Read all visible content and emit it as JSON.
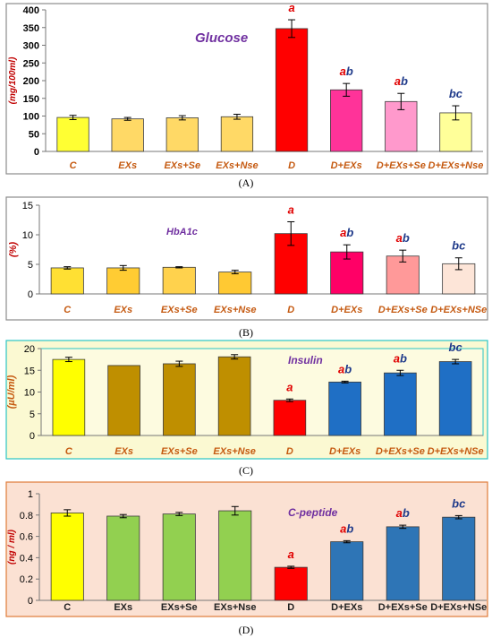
{
  "colors": {
    "frame": "#8c8c8c",
    "axis": "#7f7f7f",
    "letter_red": "#e00000",
    "letter_dark": "#1f3a8a",
    "panel_a_bg": "#ffffff",
    "panel_b_bg": "#ffffff",
    "panel_c_bg": "#fbf9d2",
    "panel_c_border": "#2cc4c4",
    "panel_d_bg": "#fbe1d3",
    "panel_d_border": "#e07b39"
  },
  "chart_data": [
    {
      "type": "bar",
      "panel_label": "(A)",
      "title": "Glucose",
      "ylabel": "(mg/100ml)",
      "ylim": [
        0,
        400
      ],
      "yticks": [
        "0",
        "50",
        "100",
        "150",
        "200",
        "250",
        "300",
        "350",
        "400"
      ],
      "grid": false,
      "categories": [
        "C",
        "EXs",
        "EXs+Se",
        "EXs+Nse",
        "D",
        "D+EXs",
        "D+EXs+Se",
        "D+EXs+Nse"
      ],
      "values": [
        96,
        92,
        95,
        98,
        347,
        174,
        141,
        109
      ],
      "errors": [
        6,
        4,
        6,
        7,
        25,
        18,
        23,
        20
      ],
      "bar_colors": [
        "#ffff33",
        "#ffd966",
        "#ffd966",
        "#ffd966",
        "#ff0000",
        "#ff3399",
        "#ff99cc",
        "#ffff99"
      ],
      "annotations": [
        "",
        "",
        "",
        "",
        "a",
        "ab",
        "ab",
        "bc"
      ],
      "annotation_color": [
        "",
        "",
        "",
        "",
        "red",
        "mixed",
        "mixed",
        "mixed2"
      ]
    },
    {
      "type": "bar",
      "panel_label": "(B)",
      "title": "HbA1c",
      "ylabel": "(%)",
      "ylim": [
        0,
        15
      ],
      "yticks": [
        "0",
        "5",
        "10",
        "15"
      ],
      "grid": false,
      "categories": [
        "C",
        "EXs",
        "EXs+Se",
        "EXs+Nse",
        "D",
        "D+EXs",
        "D+EXs+Se",
        "D+EXs+NSe"
      ],
      "values": [
        4.4,
        4.4,
        4.5,
        3.7,
        10.2,
        7.1,
        6.4,
        5.1
      ],
      "errors": [
        0.2,
        0.4,
        0.1,
        0.3,
        2.0,
        1.2,
        1.0,
        1.0
      ],
      "bar_colors": [
        "#ffe033",
        "#ffcc33",
        "#ffd24d",
        "#ffc933",
        "#ff0000",
        "#ff0066",
        "#ff9999",
        "#fde5d8"
      ],
      "annotations": [
        "",
        "",
        "",
        "",
        "a",
        "ab",
        "ab",
        "bc"
      ],
      "annotation_color": [
        "",
        "",
        "",
        "",
        "red",
        "mixed",
        "mixed",
        "mixed2"
      ]
    },
    {
      "type": "bar",
      "panel_label": "(C)",
      "title": "Insulin",
      "ylabel": "(µU/ml)",
      "ylim": [
        0,
        20
      ],
      "yticks": [
        "0",
        "5",
        "10",
        "15",
        "20"
      ],
      "grid": false,
      "categories": [
        "C",
        "EXs",
        "EXs+Se",
        "EXs+Nse",
        "D",
        "D+EXs",
        "D+EXs+Se",
        "D+EXs+NSe"
      ],
      "values": [
        17.5,
        16.1,
        16.5,
        18.1,
        8.1,
        12.3,
        14.4,
        17.0
      ],
      "errors": [
        0.5,
        0.0,
        0.6,
        0.5,
        0.3,
        0.2,
        0.6,
        0.5
      ],
      "bar_colors": [
        "#ffff00",
        "#bf8f00",
        "#bf8f00",
        "#bf8f00",
        "#ff0000",
        "#1f6fc5",
        "#1f6fc5",
        "#1f6fc5"
      ],
      "annotations": [
        "",
        "",
        "",
        "",
        "a",
        "ab",
        "ab",
        "bc"
      ],
      "annotation_color": [
        "",
        "",
        "",
        "",
        "red",
        "mixed",
        "mixed",
        "mixed2"
      ]
    },
    {
      "type": "bar",
      "panel_label": "(D)",
      "title": "C-peptide",
      "ylabel": "(ng / ml)",
      "ylim": [
        0,
        1
      ],
      "yticks": [
        "0",
        "0.2",
        "0.4",
        "0.6",
        "0.8",
        "1"
      ],
      "grid": false,
      "categories": [
        "C",
        "EXs",
        "EXs+Se",
        "EXs+Nse",
        "D",
        "D+EXs",
        "D+EXs+Se",
        "D+EXs+NSe"
      ],
      "values": [
        0.82,
        0.79,
        0.81,
        0.84,
        0.31,
        0.55,
        0.69,
        0.78
      ],
      "errors": [
        0.03,
        0.015,
        0.015,
        0.04,
        0.01,
        0.01,
        0.015,
        0.015
      ],
      "bar_colors": [
        "#ffff00",
        "#92d050",
        "#92d050",
        "#92d050",
        "#ff0000",
        "#2e75b6",
        "#2e75b6",
        "#2e75b6"
      ],
      "annotations": [
        "",
        "",
        "",
        "",
        "a",
        "ab",
        "ab",
        "bc"
      ],
      "annotation_color": [
        "",
        "",
        "",
        "",
        "red",
        "mixed",
        "mixed",
        "mixed2"
      ]
    }
  ]
}
